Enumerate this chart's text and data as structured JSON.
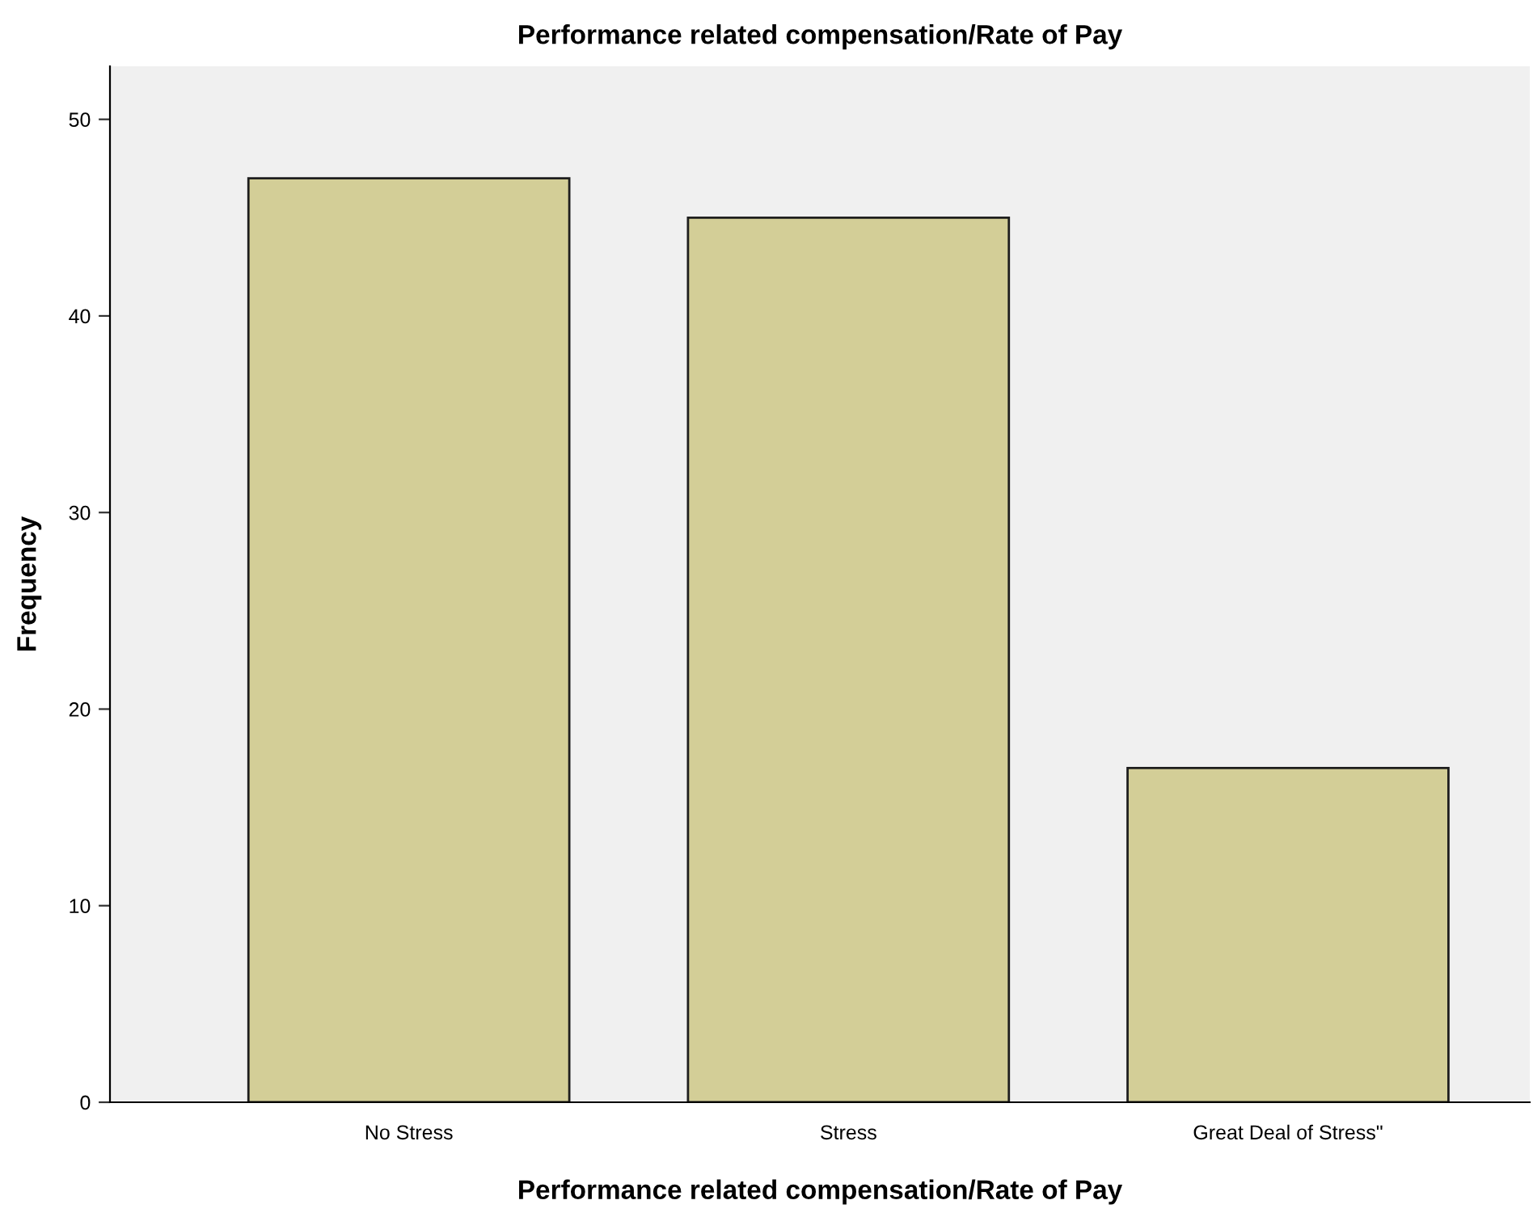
{
  "chart_data": {
    "type": "bar",
    "title": "Performance related compensation/Rate of Pay",
    "xlabel": "Performance related compensation/Rate of Pay",
    "ylabel": "Frequency",
    "categories": [
      "No Stress",
      "Stress",
      "Great Deal of Stress\""
    ],
    "values": [
      47,
      45,
      17
    ],
    "color": "#d3ce97",
    "ylim": [
      0,
      52.7
    ],
    "yticks": [
      0,
      10,
      20,
      30,
      40,
      50
    ],
    "grid": false,
    "legend": false
  }
}
